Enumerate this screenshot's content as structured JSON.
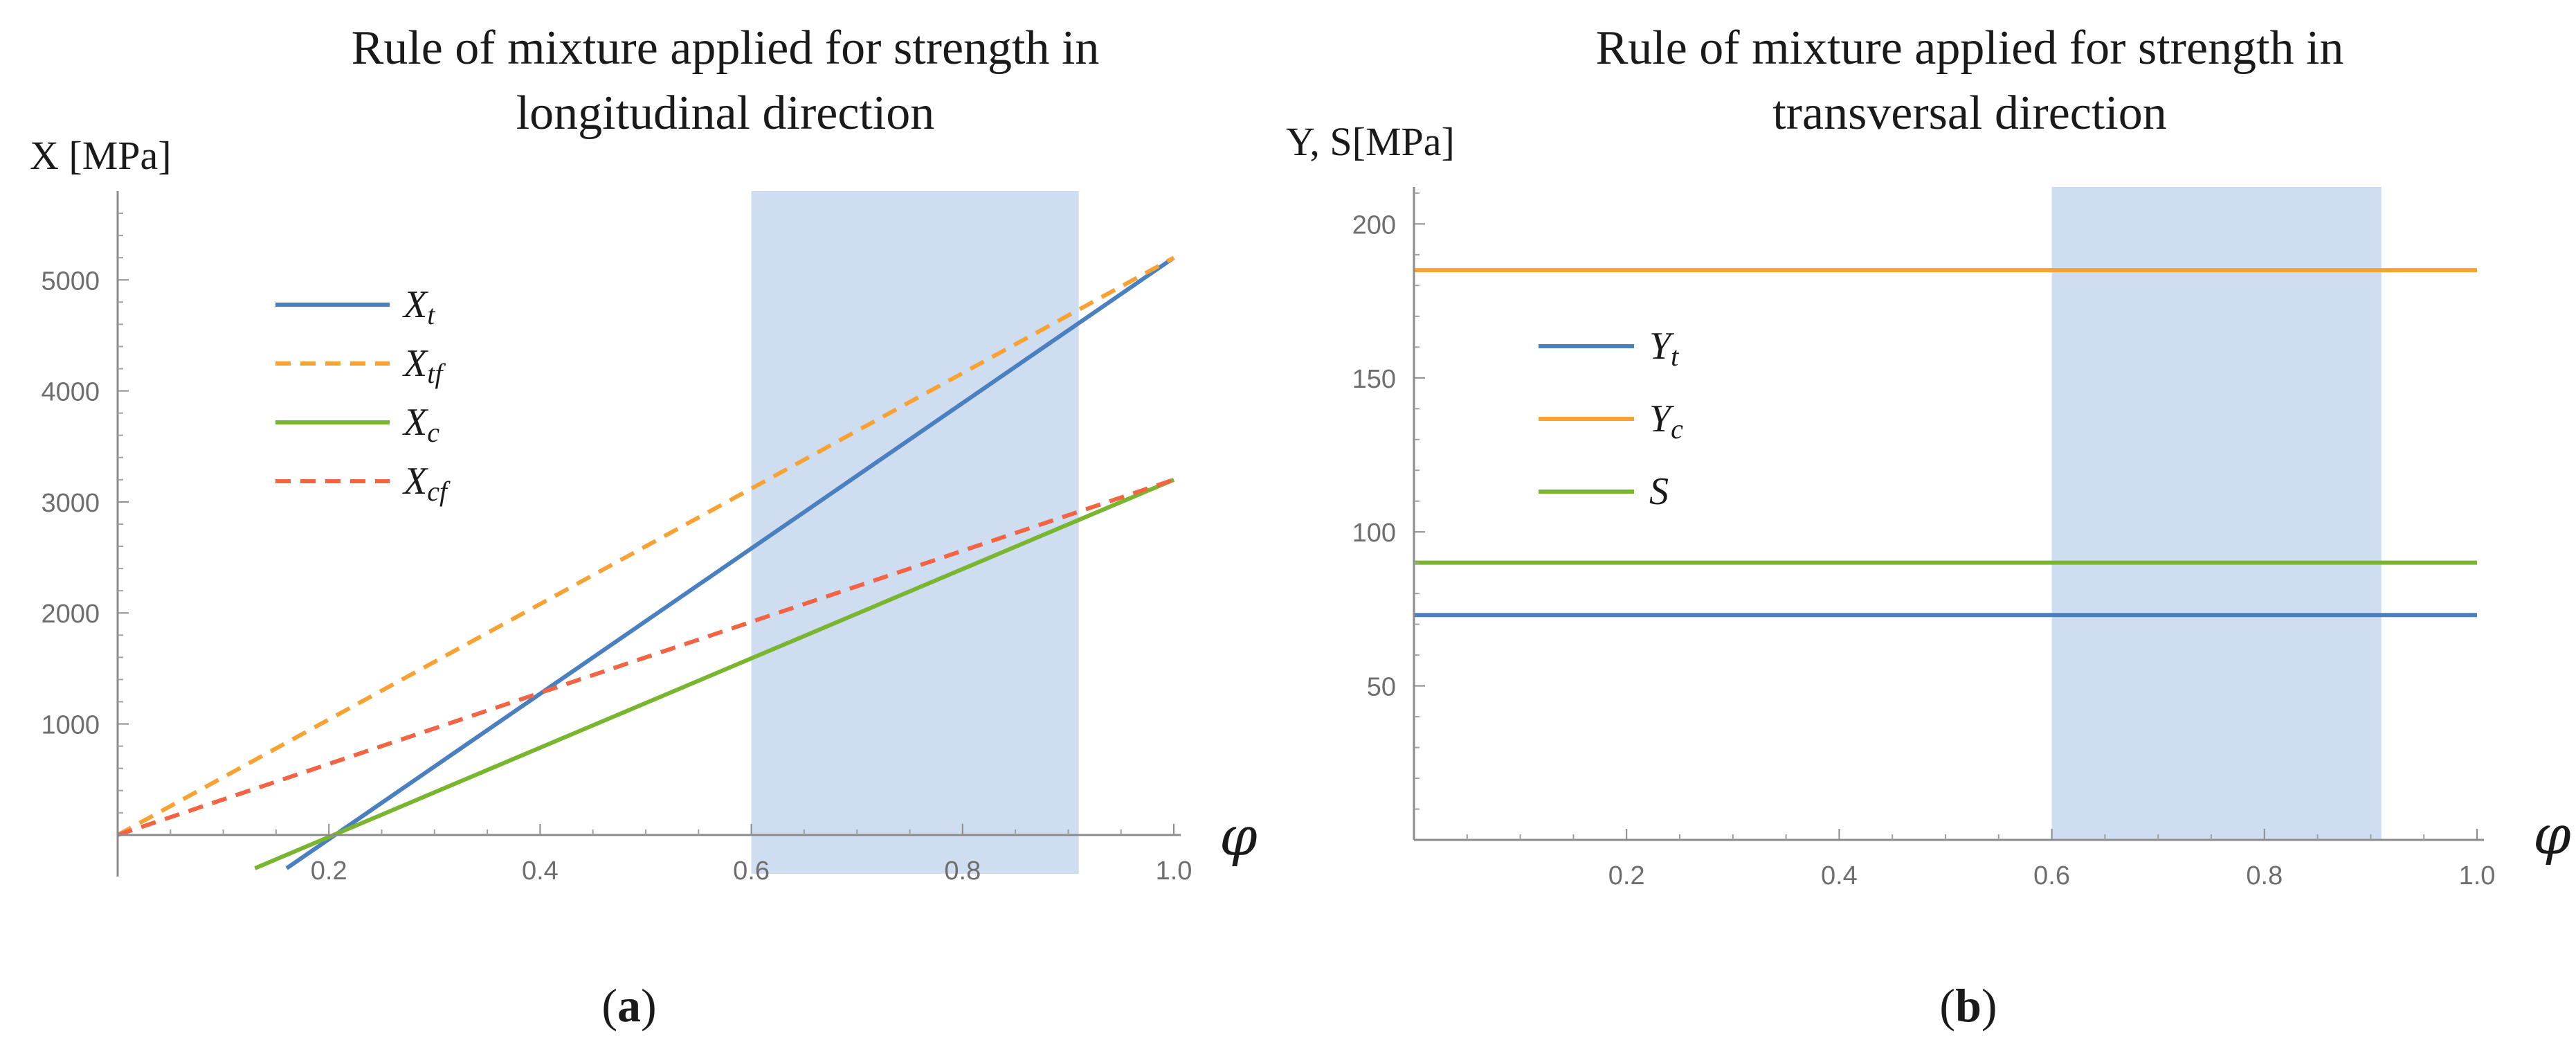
{
  "chart_data": [
    {
      "id": "a",
      "type": "line",
      "title_line1": "Rule of mixture applied for strength in",
      "title_line2": "longitudinal direction",
      "ylabel": "X [MPa]",
      "xlabel": "φ",
      "xlim": [
        0.0,
        1.0
      ],
      "ylim": [
        -350,
        5800
      ],
      "xticks": [
        0.2,
        0.4,
        0.6,
        0.8,
        1.0
      ],
      "xtick_labels": [
        "0.2",
        "0.4",
        "0.6",
        "0.8",
        "1.0"
      ],
      "yticks": [
        1000,
        2000,
        3000,
        4000,
        5000
      ],
      "ytick_labels": [
        "1000",
        "2000",
        "3000",
        "4000",
        "5000"
      ],
      "shaded_region_x": [
        0.6,
        0.91
      ],
      "shaded_color": "#c9d9ee",
      "series": [
        {
          "name": "Xt",
          "main": "X",
          "sub": "t",
          "color": "#4a7fc0",
          "dashed": false,
          "x": [
            0.16,
            1.0
          ],
          "y": [
            -300,
            5200
          ]
        },
        {
          "name": "Xtf",
          "main": "X",
          "sub": "tf",
          "color": "#f7a233",
          "dashed": true,
          "x": [
            0.0,
            1.0
          ],
          "y": [
            0,
            5200
          ]
        },
        {
          "name": "Xc",
          "main": "X",
          "sub": "c",
          "color": "#79b52e",
          "dashed": false,
          "x": [
            0.13,
            1.0
          ],
          "y": [
            -300,
            3200
          ]
        },
        {
          "name": "Xcf",
          "main": "X",
          "sub": "cf",
          "color": "#f26443",
          "dashed": true,
          "x": [
            0.0,
            1.0
          ],
          "y": [
            0,
            3200
          ]
        }
      ],
      "caption_letter": "a"
    },
    {
      "id": "b",
      "type": "line",
      "title_line1": "Rule of mixture applied for strength in",
      "title_line2": "transversal direction",
      "ylabel": "Y, S[MPa]",
      "xlabel": "φ",
      "xlim": [
        0.0,
        1.0
      ],
      "ylim": [
        0,
        212
      ],
      "xticks": [
        0.2,
        0.4,
        0.6,
        0.8,
        1.0
      ],
      "xtick_labels": [
        "0.2",
        "0.4",
        "0.6",
        "0.8",
        "1.0"
      ],
      "yticks": [
        50,
        100,
        150,
        200
      ],
      "ytick_labels": [
        "50",
        "100",
        "150",
        "200"
      ],
      "shaded_region_x": [
        0.6,
        0.91
      ],
      "shaded_color": "#c9d9ee",
      "series": [
        {
          "name": "Yt",
          "main": "Y",
          "sub": "t",
          "color": "#4a7fc0",
          "dashed": false,
          "x": [
            0.0,
            1.0
          ],
          "y": [
            73,
            73
          ]
        },
        {
          "name": "Yc",
          "main": "Y",
          "sub": "c",
          "color": "#f7a233",
          "dashed": false,
          "x": [
            0.0,
            1.0
          ],
          "y": [
            185,
            185
          ]
        },
        {
          "name": "S",
          "main": "S",
          "sub": "",
          "color": "#79b52e",
          "dashed": false,
          "x": [
            0.0,
            1.0
          ],
          "y": [
            90,
            90
          ]
        }
      ],
      "caption_letter": "b"
    }
  ]
}
